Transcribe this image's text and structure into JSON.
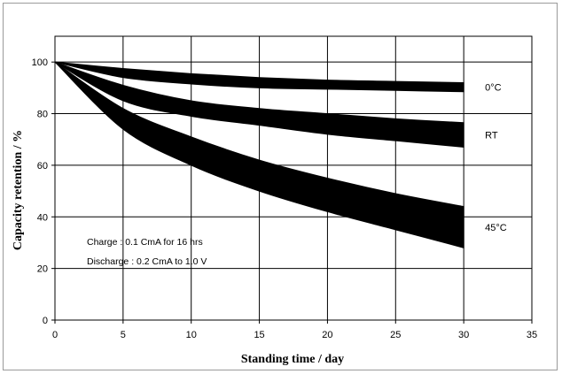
{
  "chart_data": {
    "type": "area",
    "title": "",
    "xlabel": "Standing time / day",
    "ylabel": "Capacity retention / %",
    "xlim": [
      0,
      35
    ],
    "ylim": [
      0,
      110
    ],
    "xticks": [
      0,
      5,
      10,
      15,
      20,
      25,
      30,
      35
    ],
    "yticks": [
      0,
      20,
      40,
      60,
      80,
      100
    ],
    "grid": true,
    "fill_color": "#000000",
    "annotations": [
      "Charge : 0.1 CmA for 16 hrs",
      "Discharge : 0.2 CmA to 1.0 V"
    ],
    "series": [
      {
        "name": "0°C",
        "x": [
          0,
          5,
          10,
          15,
          20,
          25,
          30
        ],
        "upper": [
          100,
          97.5,
          95.5,
          94,
          93,
          92.5,
          92
        ],
        "lower": [
          100,
          94,
          91.5,
          90,
          89.5,
          89,
          88.5
        ]
      },
      {
        "name": "RT",
        "x": [
          0,
          5,
          10,
          15,
          20,
          25,
          30
        ],
        "upper": [
          100,
          91,
          85,
          82,
          80,
          78,
          76.5
        ],
        "lower": [
          100,
          85,
          79,
          75.5,
          72,
          69.5,
          67
        ]
      },
      {
        "name": "45°C",
        "x": [
          0,
          5,
          10,
          15,
          20,
          25,
          30
        ],
        "upper": [
          100,
          82,
          71,
          62,
          55,
          49,
          44
        ],
        "lower": [
          100,
          74,
          60,
          50,
          42,
          35,
          28
        ]
      }
    ]
  }
}
